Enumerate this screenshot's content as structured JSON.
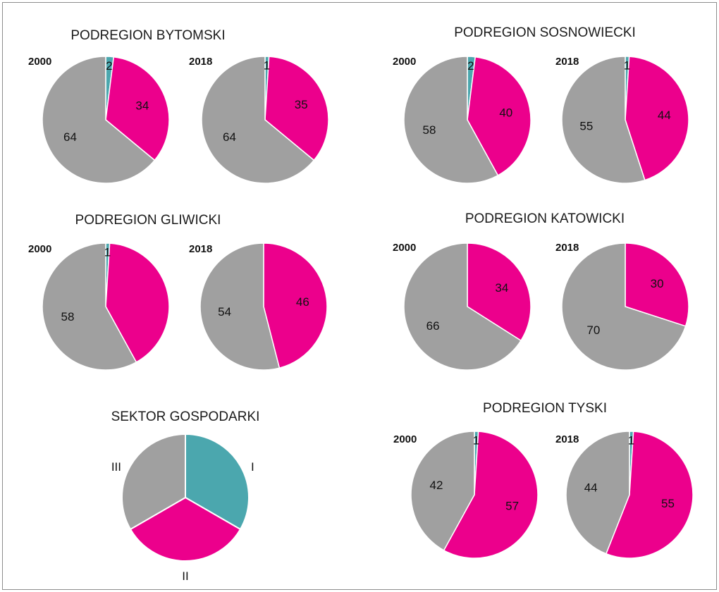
{
  "colors": {
    "I": "#4BA7AE",
    "II": "#EC008C",
    "III": "#A0A0A0",
    "slice_border": "#ffffff"
  },
  "chart_data": [
    {
      "type": "pie",
      "title": "PODREGION BYTOMSKI",
      "pies": [
        {
          "label": "2000",
          "values": [
            2,
            34,
            64
          ]
        },
        {
          "label": "2018",
          "values": [
            1,
            35,
            64
          ]
        }
      ]
    },
    {
      "type": "pie",
      "title": "PODREGION SOSNOWIECKI",
      "pies": [
        {
          "label": "2000",
          "values": [
            2,
            40,
            58
          ]
        },
        {
          "label": "2018",
          "values": [
            1,
            44,
            55
          ]
        }
      ]
    },
    {
      "type": "pie",
      "title": "PODREGION GLIWICKI",
      "pies": [
        {
          "label": "2000",
          "values": [
            1,
            41,
            58
          ],
          "shown": [
            "1",
            "",
            "58"
          ]
        },
        {
          "label": "2018",
          "values": [
            0,
            46,
            54
          ],
          "shown": [
            "",
            "46",
            "54"
          ]
        }
      ]
    },
    {
      "type": "pie",
      "title": "PODREGION KATOWICKI",
      "pies": [
        {
          "label": "2000",
          "values": [
            0,
            34,
            66
          ],
          "shown": [
            "",
            "34",
            "66"
          ]
        },
        {
          "label": "2018",
          "values": [
            0,
            30,
            70
          ],
          "shown": [
            "",
            "30",
            "70"
          ]
        }
      ]
    },
    {
      "type": "pie",
      "title": "PODREGION TYSKI",
      "pies": [
        {
          "label": "2000",
          "values": [
            1,
            57,
            42
          ]
        },
        {
          "label": "2018",
          "values": [
            1,
            55,
            44
          ]
        }
      ]
    }
  ],
  "legend": {
    "title": "SEKTOR GOSPODARKI",
    "categories": [
      "I",
      "II",
      "III"
    ]
  }
}
